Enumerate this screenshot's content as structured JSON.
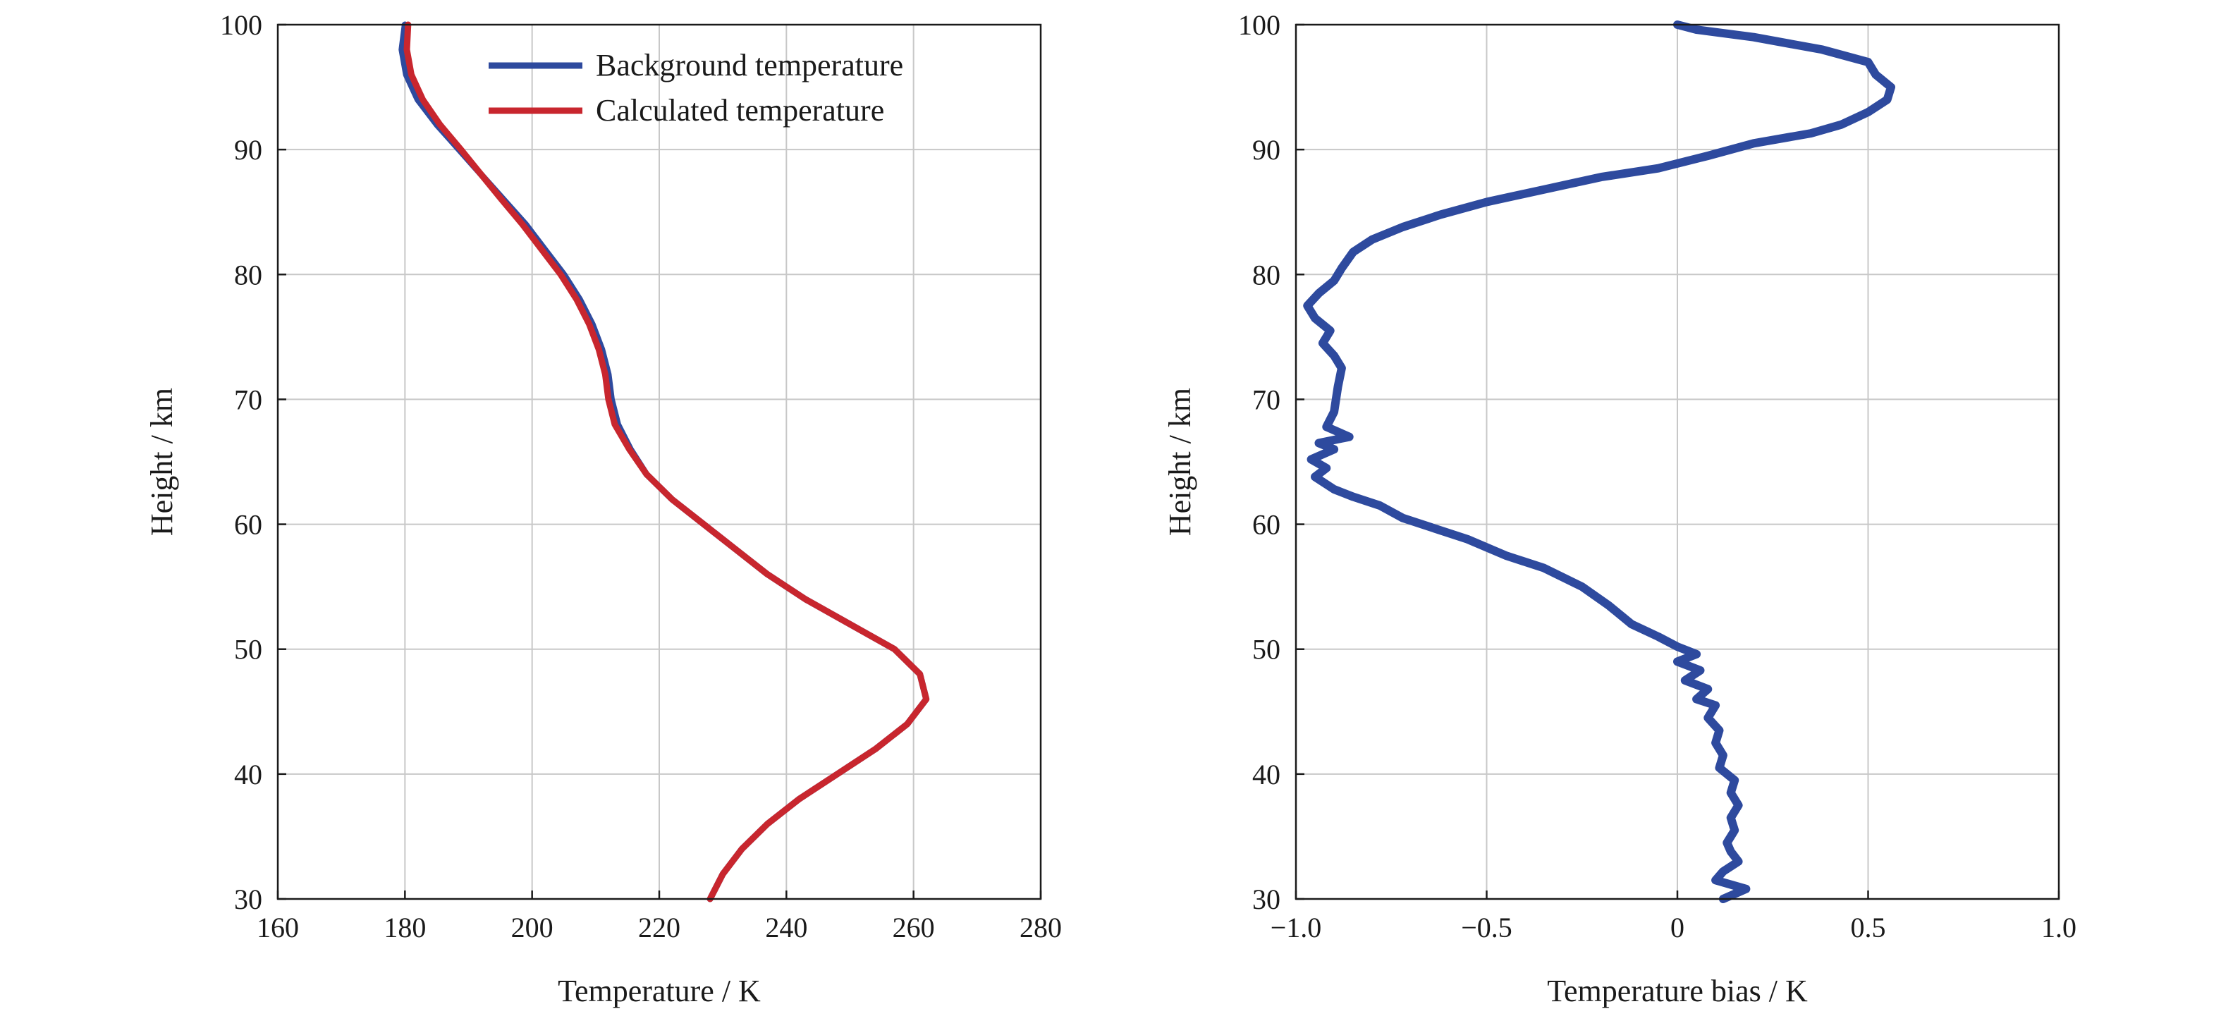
{
  "chart_data": [
    {
      "type": "line",
      "xlabel": "Temperature / K",
      "ylabel": "Height / km",
      "xlim": [
        160,
        280
      ],
      "ylim": [
        30,
        100
      ],
      "xticks": [
        "160",
        "180",
        "200",
        "220",
        "240",
        "260",
        "280"
      ],
      "yticks": [
        "30",
        "40",
        "50",
        "60",
        "70",
        "80",
        "90",
        "100"
      ],
      "grid": true,
      "legend_position": "top-right",
      "series": [
        {
          "name": "Background temperature",
          "color": "#2e4a9e",
          "points": [
            [
              228,
              30
            ],
            [
              230,
              32
            ],
            [
              233,
              34
            ],
            [
              237,
              36
            ],
            [
              242,
              38
            ],
            [
              248,
              40
            ],
            [
              254,
              42
            ],
            [
              259,
              44
            ],
            [
              262,
              46
            ],
            [
              261,
              48
            ],
            [
              257,
              50
            ],
            [
              250,
              52
            ],
            [
              243,
              54
            ],
            [
              237,
              56
            ],
            [
              232,
              58
            ],
            [
              227,
              60
            ],
            [
              222,
              62
            ],
            [
              218,
              64
            ],
            [
              215.5,
              66
            ],
            [
              213.5,
              68
            ],
            [
              212.5,
              70
            ],
            [
              212,
              72
            ],
            [
              211,
              74
            ],
            [
              209.5,
              76
            ],
            [
              207.5,
              78
            ],
            [
              205,
              80
            ],
            [
              202,
              82
            ],
            [
              199,
              84
            ],
            [
              195.5,
              86
            ],
            [
              192,
              88
            ],
            [
              188.5,
              90
            ],
            [
              185,
              92
            ],
            [
              182,
              94
            ],
            [
              180.2,
              96
            ],
            [
              179.5,
              98
            ],
            [
              180,
              100
            ]
          ]
        },
        {
          "name": "Calculated temperature",
          "color": "#c8262e",
          "points": [
            [
              228,
              30
            ],
            [
              230,
              32
            ],
            [
              233,
              34
            ],
            [
              237,
              36
            ],
            [
              242,
              38
            ],
            [
              248,
              40
            ],
            [
              254,
              42
            ],
            [
              259,
              44
            ],
            [
              262,
              46
            ],
            [
              261,
              48
            ],
            [
              257,
              50
            ],
            [
              250,
              52
            ],
            [
              243,
              54
            ],
            [
              237,
              56
            ],
            [
              232,
              58
            ],
            [
              227,
              60
            ],
            [
              222,
              62
            ],
            [
              218,
              64
            ],
            [
              215.3,
              66
            ],
            [
              213,
              68
            ],
            [
              212,
              70
            ],
            [
              211.5,
              72
            ],
            [
              210.5,
              74
            ],
            [
              209,
              76
            ],
            [
              207,
              78
            ],
            [
              204.5,
              80
            ],
            [
              201.5,
              82
            ],
            [
              198.5,
              84
            ],
            [
              195.2,
              86
            ],
            [
              192,
              88
            ],
            [
              188.8,
              90
            ],
            [
              185.5,
              92
            ],
            [
              182.8,
              94
            ],
            [
              181,
              96
            ],
            [
              180.3,
              98
            ],
            [
              180.5,
              100
            ]
          ]
        }
      ]
    },
    {
      "type": "line",
      "xlabel": "Temperature bias / K",
      "ylabel": "Height / km",
      "xlim": [
        -1.0,
        1.0
      ],
      "ylim": [
        30,
        100
      ],
      "xticks": [
        "−1.0",
        "−0.5",
        "0",
        "0.5",
        "1.0"
      ],
      "yticks": [
        "30",
        "40",
        "50",
        "60",
        "70",
        "80",
        "90",
        "100"
      ],
      "grid": true,
      "series": [
        {
          "name": "",
          "color": "#2e4a9e",
          "points": [
            [
              0.12,
              30
            ],
            [
              0.18,
              30.8
            ],
            [
              0.1,
              31.5
            ],
            [
              0.12,
              32.2
            ],
            [
              0.16,
              33
            ],
            [
              0.14,
              33.8
            ],
            [
              0.13,
              34.5
            ],
            [
              0.15,
              35.5
            ],
            [
              0.14,
              36.5
            ],
            [
              0.16,
              37.5
            ],
            [
              0.14,
              38.5
            ],
            [
              0.15,
              39.5
            ],
            [
              0.11,
              40.5
            ],
            [
              0.12,
              41.5
            ],
            [
              0.1,
              42.5
            ],
            [
              0.11,
              43.5
            ],
            [
              0.08,
              44.5
            ],
            [
              0.1,
              45.5
            ],
            [
              0.05,
              46
            ],
            [
              0.08,
              46.8
            ],
            [
              0.02,
              47.5
            ],
            [
              0.06,
              48.3
            ],
            [
              0,
              49
            ],
            [
              0.05,
              49.6
            ],
            [
              0,
              50.2
            ],
            [
              -0.05,
              51
            ],
            [
              -0.12,
              52
            ],
            [
              -0.18,
              53.5
            ],
            [
              -0.25,
              55
            ],
            [
              -0.35,
              56.5
            ],
            [
              -0.45,
              57.5
            ],
            [
              -0.55,
              58.8
            ],
            [
              -0.65,
              59.8
            ],
            [
              -0.72,
              60.5
            ],
            [
              -0.78,
              61.5
            ],
            [
              -0.85,
              62.2
            ],
            [
              -0.9,
              62.8
            ],
            [
              -0.95,
              63.8
            ],
            [
              -0.92,
              64.5
            ],
            [
              -0.96,
              65.2
            ],
            [
              -0.9,
              66
            ],
            [
              -0.94,
              66.5
            ],
            [
              -0.86,
              67
            ],
            [
              -0.92,
              67.8
            ],
            [
              -0.9,
              69
            ],
            [
              -0.89,
              71
            ],
            [
              -0.88,
              72.5
            ],
            [
              -0.9,
              73.5
            ],
            [
              -0.93,
              74.5
            ],
            [
              -0.91,
              75.5
            ],
            [
              -0.95,
              76.5
            ],
            [
              -0.97,
              77.5
            ],
            [
              -0.94,
              78.5
            ],
            [
              -0.9,
              79.5
            ],
            [
              -0.88,
              80.5
            ],
            [
              -0.85,
              81.8
            ],
            [
              -0.8,
              82.8
            ],
            [
              -0.72,
              83.8
            ],
            [
              -0.62,
              84.8
            ],
            [
              -0.5,
              85.8
            ],
            [
              -0.35,
              86.8
            ],
            [
              -0.2,
              87.8
            ],
            [
              -0.05,
              88.5
            ],
            [
              0.08,
              89.5
            ],
            [
              0.2,
              90.5
            ],
            [
              0.35,
              91.3
            ],
            [
              0.43,
              92
            ],
            [
              0.5,
              93
            ],
            [
              0.55,
              94
            ],
            [
              0.56,
              95
            ],
            [
              0.52,
              96
            ],
            [
              0.5,
              97
            ],
            [
              0.38,
              98
            ],
            [
              0.2,
              99
            ],
            [
              0.05,
              99.6
            ],
            [
              0,
              100
            ]
          ]
        }
      ]
    }
  ],
  "legend": [
    {
      "label": "Background temperature",
      "color": "#2e4a9e"
    },
    {
      "label": "Calculated temperature",
      "color": "#c8262e"
    }
  ]
}
